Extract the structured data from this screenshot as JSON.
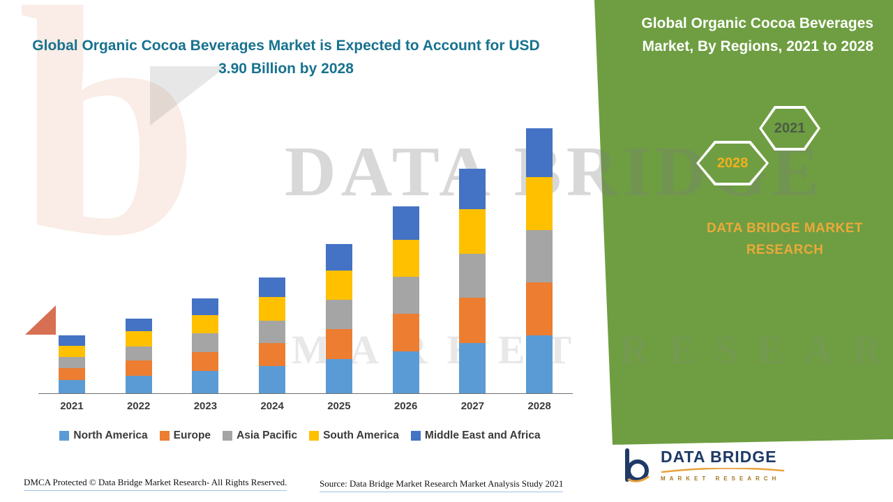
{
  "title": "Global Organic Cocoa Beverages Market is Expected to Account for USD 3.90 Billion by 2028",
  "side_panel": {
    "title": "Global Organic Cocoa Beverages Market, By Regions, 2021 to 2028",
    "hexagon_back_label": "2028",
    "hexagon_front_label": "2021",
    "brand": "DATA BRIDGE MARKET RESEARCH"
  },
  "watermark": {
    "line1": "DATA BRIDGE",
    "line2": "MARKET RESEARCH",
    "logo_letter": "b"
  },
  "footer": {
    "dmca": "DMCA Protected © Data Bridge Market Research- All Rights Reserved.",
    "source": "Source: Data Bridge Market Research Market Analysis Study 2021"
  },
  "logo": {
    "name": "DATA BRIDGE",
    "subtitle": "MARKET RESEARCH"
  },
  "colors": {
    "title_teal": "#17728F",
    "panel_green": "#6E9E41",
    "brand_gold": "#EBA93B",
    "hexagon_year_gold": "#F2B01E",
    "logo_navy": "#1E3A66"
  },
  "chart_data": {
    "type": "bar",
    "stacked": true,
    "title": "Global Organic Cocoa Beverages Market is Expected to Account for USD 3.90 Billion by 2028",
    "categories": [
      "2021",
      "2022",
      "2023",
      "2024",
      "2025",
      "2026",
      "2027",
      "2028"
    ],
    "series": [
      {
        "name": "North America",
        "color": "#5B9BD5",
        "values": [
          0.2,
          0.26,
          0.33,
          0.4,
          0.5,
          0.62,
          0.74,
          0.85
        ]
      },
      {
        "name": "Europe",
        "color": "#ED7D31",
        "values": [
          0.17,
          0.22,
          0.28,
          0.34,
          0.44,
          0.55,
          0.66,
          0.78
        ]
      },
      {
        "name": "Asia Pacific",
        "color": "#A5A5A5",
        "values": [
          0.16,
          0.21,
          0.27,
          0.33,
          0.43,
          0.54,
          0.65,
          0.77
        ]
      },
      {
        "name": "South America",
        "color": "#FFC000",
        "values": [
          0.17,
          0.22,
          0.27,
          0.34,
          0.44,
          0.55,
          0.66,
          0.78
        ]
      },
      {
        "name": "Middle East and Africa",
        "color": "#4472C4",
        "values": [
          0.15,
          0.19,
          0.25,
          0.29,
          0.39,
          0.49,
          0.59,
          0.72
        ]
      }
    ],
    "totals_usd_billion_estimated": [
      0.85,
      1.1,
      1.4,
      1.7,
      2.2,
      2.75,
      3.3,
      3.9
    ],
    "ylim": [
      0,
      4.0
    ],
    "unit_hint_from_title": "USD Billion",
    "grid": false,
    "legend_position": "bottom",
    "xlabel": "",
    "ylabel": ""
  }
}
